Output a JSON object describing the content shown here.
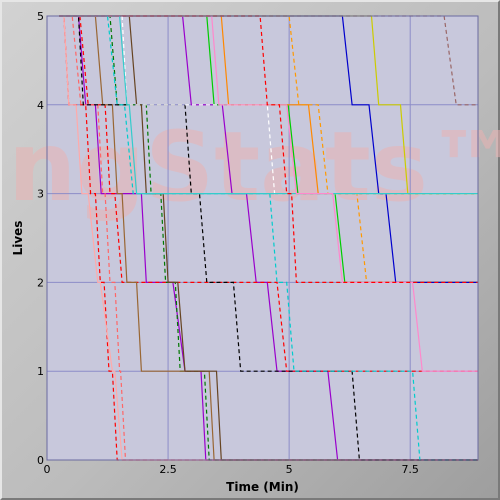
{
  "chart_data": {
    "type": "line",
    "title": "",
    "xlabel": "Time (Min)",
    "ylabel": "Lives",
    "xlim": [
      0,
      8.9
    ],
    "ylim": [
      0,
      5
    ],
    "x_ticks": [
      0,
      2.5,
      5,
      7.5
    ],
    "x_tick_labels": [
      "0",
      "2.5",
      "5",
      "7.5"
    ],
    "y_ticks": [
      0,
      1,
      2,
      3,
      4,
      5
    ],
    "y_tick_labels": [
      "0",
      "1",
      "2",
      "3",
      "4",
      "5"
    ],
    "grid": true,
    "legend": "none",
    "background_color": "#c8c8dc",
    "grid_color": "#8c8cc8",
    "watermark": "ngStats™",
    "series": [
      {
        "color": "#9900cc",
        "dashed": false,
        "points": [
          [
            0.25,
            5
          ],
          [
            2.8,
            5
          ],
          [
            2.98,
            4
          ],
          [
            3.62,
            4
          ],
          [
            3.82,
            3
          ],
          [
            4.12,
            3
          ],
          [
            4.32,
            2
          ],
          [
            4.55,
            2
          ],
          [
            4.75,
            1
          ],
          [
            5.8,
            1
          ],
          [
            6.0,
            0
          ],
          [
            8.9,
            0
          ]
        ]
      },
      {
        "color": "#9900cc",
        "dashed": false,
        "points": [
          [
            0.25,
            5
          ],
          [
            0.65,
            5
          ],
          [
            0.8,
            4
          ],
          [
            1.0,
            4
          ],
          [
            1.12,
            3
          ],
          [
            1.95,
            3
          ],
          [
            2.05,
            2
          ],
          [
            2.6,
            2
          ],
          [
            2.85,
            1
          ],
          [
            3.18,
            1
          ],
          [
            3.28,
            0
          ],
          [
            8.9,
            0
          ]
        ]
      },
      {
        "color": "#ff0000",
        "dashed": true,
        "points": [
          [
            0.25,
            5
          ],
          [
            0.68,
            5
          ],
          [
            0.85,
            4
          ],
          [
            1.2,
            4
          ],
          [
            1.3,
            3
          ],
          [
            1.4,
            3
          ],
          [
            1.55,
            2
          ],
          [
            4.75,
            2
          ],
          [
            4.95,
            1
          ],
          [
            8.9,
            1
          ]
        ]
      },
      {
        "color": "#ff0000",
        "dashed": true,
        "points": [
          [
            0.25,
            5
          ],
          [
            0.35,
            5
          ],
          [
            0.45,
            4
          ],
          [
            0.8,
            4
          ],
          [
            0.9,
            3
          ],
          [
            1.0,
            3
          ],
          [
            1.1,
            2
          ],
          [
            1.18,
            2
          ],
          [
            1.28,
            1
          ],
          [
            1.35,
            1
          ],
          [
            1.45,
            0
          ],
          [
            8.9,
            0
          ]
        ]
      },
      {
        "color": "#ff6666",
        "dashed": true,
        "points": [
          [
            0.25,
            5
          ],
          [
            0.52,
            5
          ],
          [
            0.7,
            4
          ],
          [
            1.05,
            4
          ],
          [
            1.15,
            3
          ],
          [
            1.2,
            3
          ],
          [
            1.3,
            2
          ],
          [
            1.4,
            2
          ],
          [
            1.5,
            1
          ],
          [
            1.52,
            1
          ],
          [
            1.62,
            0
          ],
          [
            8.9,
            0
          ]
        ]
      },
      {
        "color": "#ffaaaa",
        "dashed": false,
        "points": [
          [
            0.25,
            5
          ],
          [
            0.35,
            5
          ],
          [
            0.45,
            4
          ],
          [
            0.6,
            4
          ],
          [
            0.72,
            3
          ],
          [
            0.85,
            3
          ],
          [
            1.05,
            2
          ],
          [
            1.1,
            2
          ],
          [
            1.35,
            1
          ],
          [
            1.4,
            1
          ],
          [
            1.55,
            0
          ],
          [
            8.9,
            0
          ]
        ]
      },
      {
        "color": "#00cc00",
        "dashed": false,
        "points": [
          [
            0.25,
            5
          ],
          [
            3.3,
            5
          ],
          [
            3.45,
            4
          ],
          [
            4.98,
            4
          ],
          [
            5.18,
            3
          ],
          [
            5.95,
            3
          ],
          [
            6.15,
            2
          ],
          [
            8.9,
            2
          ]
        ]
      },
      {
        "color": "#007700",
        "dashed": true,
        "points": [
          [
            0.25,
            5
          ],
          [
            1.3,
            5
          ],
          [
            1.45,
            4
          ],
          [
            2.05,
            4
          ],
          [
            2.15,
            3
          ],
          [
            2.35,
            3
          ],
          [
            2.45,
            2
          ],
          [
            2.65,
            2
          ],
          [
            2.75,
            1
          ],
          [
            3.25,
            1
          ],
          [
            3.35,
            0
          ],
          [
            8.9,
            0
          ]
        ]
      },
      {
        "color": "#996633",
        "dashed": false,
        "points": [
          [
            0.25,
            5
          ],
          [
            1.0,
            5
          ],
          [
            1.15,
            4
          ],
          [
            1.35,
            4
          ],
          [
            1.45,
            3
          ],
          [
            1.55,
            3
          ],
          [
            1.65,
            2
          ],
          [
            1.85,
            2
          ],
          [
            1.95,
            1
          ],
          [
            3.35,
            1
          ],
          [
            3.45,
            0
          ],
          [
            8.9,
            0
          ]
        ]
      },
      {
        "color": "#664422",
        "dashed": false,
        "points": [
          [
            0.25,
            5
          ],
          [
            1.7,
            5
          ],
          [
            1.85,
            4
          ],
          [
            1.95,
            4
          ],
          [
            2.05,
            3
          ],
          [
            2.4,
            3
          ],
          [
            2.5,
            2
          ],
          [
            2.7,
            2
          ],
          [
            2.85,
            1
          ],
          [
            3.5,
            1
          ],
          [
            3.6,
            0
          ],
          [
            8.9,
            0
          ]
        ]
      },
      {
        "color": "#ff8800",
        "dashed": false,
        "points": [
          [
            0.25,
            5
          ],
          [
            3.6,
            5
          ],
          [
            3.75,
            4
          ],
          [
            5.4,
            4
          ],
          [
            5.6,
            3
          ],
          [
            8.9,
            3
          ]
        ]
      },
      {
        "color": "#ff9900",
        "dashed": true,
        "points": [
          [
            0.25,
            5
          ],
          [
            5.0,
            5
          ],
          [
            5.2,
            4
          ],
          [
            5.6,
            4
          ],
          [
            5.8,
            3
          ],
          [
            6.4,
            3
          ],
          [
            6.6,
            2
          ],
          [
            8.9,
            2
          ]
        ]
      },
      {
        "color": "#0000cc",
        "dashed": false,
        "points": [
          [
            0.25,
            5
          ],
          [
            6.1,
            5
          ],
          [
            6.3,
            4
          ],
          [
            6.65,
            4
          ],
          [
            6.85,
            3
          ],
          [
            7.0,
            3
          ],
          [
            7.2,
            2
          ],
          [
            8.9,
            2
          ]
        ]
      },
      {
        "color": "#cccc00",
        "dashed": false,
        "points": [
          [
            0.25,
            5
          ],
          [
            6.7,
            5
          ],
          [
            6.85,
            4
          ],
          [
            7.3,
            4
          ],
          [
            7.45,
            3
          ],
          [
            8.9,
            3
          ]
        ]
      },
      {
        "color": "#996666",
        "dashed": true,
        "points": [
          [
            0.25,
            5
          ],
          [
            8.2,
            5
          ],
          [
            8.45,
            4
          ],
          [
            8.9,
            4
          ]
        ]
      },
      {
        "color": "#000000",
        "dashed": true,
        "points": [
          [
            0.25,
            5
          ],
          [
            0.65,
            5
          ],
          [
            0.75,
            4
          ],
          [
            2.85,
            4
          ],
          [
            2.98,
            3
          ],
          [
            3.15,
            3
          ],
          [
            3.3,
            2
          ],
          [
            3.85,
            2
          ],
          [
            4.0,
            1
          ],
          [
            6.3,
            1
          ],
          [
            6.45,
            0
          ],
          [
            8.9,
            0
          ]
        ]
      },
      {
        "color": "#ffffff",
        "dashed": true,
        "points": [
          [
            0.25,
            5
          ],
          [
            1.55,
            5
          ],
          [
            1.65,
            4
          ],
          [
            4.55,
            4
          ],
          [
            4.7,
            3
          ],
          [
            8.9,
            3
          ]
        ]
      },
      {
        "color": "#00cccc",
        "dashed": true,
        "points": [
          [
            0.25,
            5
          ],
          [
            1.25,
            5
          ],
          [
            1.45,
            4
          ],
          [
            1.6,
            4
          ],
          [
            1.78,
            3
          ],
          [
            4.6,
            3
          ],
          [
            4.75,
            2
          ],
          [
            4.95,
            2
          ],
          [
            5.1,
            1
          ],
          [
            7.55,
            1
          ],
          [
            7.7,
            0
          ],
          [
            8.9,
            0
          ]
        ]
      },
      {
        "color": "#33cccc",
        "dashed": false,
        "points": [
          [
            0.25,
            5
          ],
          [
            1.5,
            5
          ],
          [
            1.65,
            4
          ],
          [
            1.7,
            4
          ],
          [
            1.85,
            3
          ],
          [
            8.9,
            3
          ]
        ]
      },
      {
        "color": "#ff88cc",
        "dashed": false,
        "points": [
          [
            0.25,
            5
          ],
          [
            3.4,
            5
          ],
          [
            3.55,
            4
          ],
          [
            4.95,
            4
          ],
          [
            5.15,
            3
          ],
          [
            5.9,
            3
          ],
          [
            6.1,
            2
          ],
          [
            7.55,
            2
          ],
          [
            7.75,
            1
          ],
          [
            8.9,
            1
          ]
        ]
      },
      {
        "color": "#ff0000",
        "dashed": true,
        "points": [
          [
            0.25,
            5
          ],
          [
            4.4,
            5
          ],
          [
            4.55,
            4
          ],
          [
            4.8,
            4
          ],
          [
            4.95,
            3
          ],
          [
            5.05,
            3
          ],
          [
            5.15,
            2
          ],
          [
            8.9,
            2
          ]
        ]
      }
    ]
  }
}
